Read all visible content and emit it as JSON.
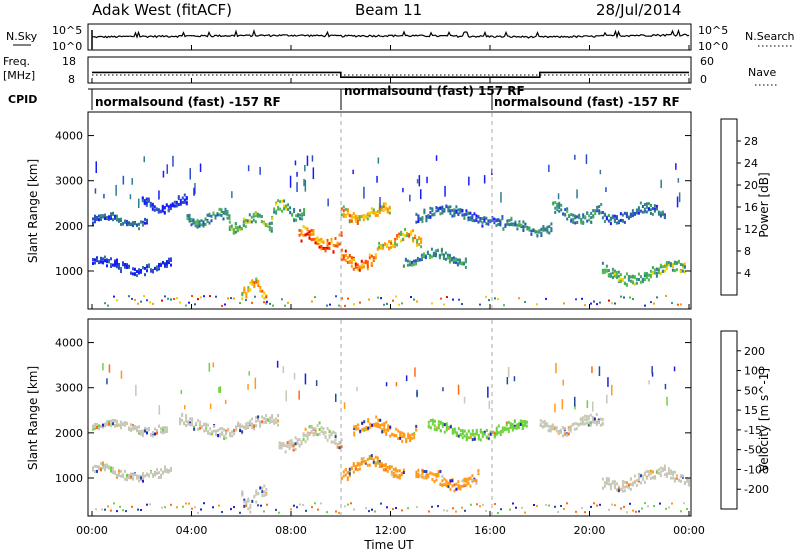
{
  "header": {
    "radar": "Adak West (fitACF)",
    "beam": "Beam 11",
    "date": "28/Jul/2014"
  },
  "panels": {
    "nsky": {
      "label": "N.Sky",
      "right_label": "N.Search",
      "tick_top": "10^5",
      "tick_bottom": "10^0"
    },
    "freq": {
      "label_line1": "Freq.",
      "label_line2": "[MHz]",
      "right_label": "Nave",
      "left_ticks": [
        "18",
        "8"
      ],
      "right_ticks": [
        "60",
        "0"
      ]
    },
    "cpid": {
      "label": "CPID",
      "segments": [
        "normalsound (fast) -157 RF",
        "normalsound (fast) 157 RF",
        "normalsound (fast) -157 RF"
      ]
    }
  },
  "xaxis": {
    "label": "Time UT",
    "ticks": [
      "00:00",
      "04:00",
      "08:00",
      "12:00",
      "16:00",
      "20:00",
      "00:00"
    ]
  },
  "colors": {
    "pwr_colors": [
      "#1a1aff",
      "#2a4fc9",
      "#2f7d8f",
      "#3f9b6f",
      "#4fb84f",
      "#f0d000",
      "#ff9a00",
      "#ff5000",
      "#ee0000"
    ],
    "vel_colors": [
      "#1f1fcf",
      "#234aa0",
      "#2b7d5a",
      "#6ed23f",
      "#c8c8b8",
      "#c8c8b8",
      "#ff9a1a",
      "#ff6a1a",
      "#ff3a1a",
      "#ee1a1a"
    ]
  },
  "chart_data": [
    {
      "type": "line",
      "name_label": "N.Sky",
      "yscale": "log",
      "ylim": [
        1,
        100000
      ],
      "x_hours": [
        0,
        2,
        4,
        6,
        8,
        10,
        12,
        14,
        16,
        18,
        20,
        22,
        24
      ],
      "values": [
        300,
        400,
        500,
        600,
        700,
        500,
        600,
        500,
        400,
        300,
        400,
        700,
        900
      ]
    },
    {
      "type": "line",
      "name_label": "Freq. [MHz]",
      "ylim": [
        8,
        18
      ],
      "x_hours": [
        0,
        10,
        10,
        18,
        18,
        24
      ],
      "values": [
        12,
        12,
        10,
        10,
        12,
        12
      ]
    },
    {
      "type": "heatmap",
      "ylabel": "Slant Range [km]",
      "colorbar_label": "Power [dB]",
      "colorbar_ticks": [
        "28",
        "24",
        "20",
        "16",
        "12",
        "8",
        "4"
      ],
      "xlim_hours": [
        0,
        24
      ],
      "ylim": [
        180,
        4500
      ],
      "yticks": [
        "1000",
        "2000",
        "3000",
        "4000"
      ],
      "bands": [
        {
          "t0": 0.0,
          "t1": 2.2,
          "r": 2150,
          "w": 140,
          "lvl": 2
        },
        {
          "t0": 0.0,
          "t1": 3.2,
          "r": 1150,
          "w": 170,
          "lvl": 1
        },
        {
          "t0": 2.0,
          "t1": 3.8,
          "r": 2500,
          "w": 180,
          "lvl": 1
        },
        {
          "t0": 3.8,
          "t1": 5.5,
          "r": 2200,
          "w": 220,
          "lvl": 3
        },
        {
          "t0": 5.5,
          "t1": 7.2,
          "r": 2100,
          "w": 220,
          "lvl": 4
        },
        {
          "t0": 6.0,
          "t1": 7.0,
          "r": 600,
          "w": 300,
          "lvl": 6
        },
        {
          "t0": 7.2,
          "t1": 8.5,
          "r": 2350,
          "w": 250,
          "lvl": 4
        },
        {
          "t0": 8.3,
          "t1": 10.0,
          "r": 1700,
          "w": 300,
          "lvl": 7
        },
        {
          "t0": 10.0,
          "t1": 11.5,
          "r": 1250,
          "w": 250,
          "lvl": 7
        },
        {
          "t0": 10.0,
          "t1": 12.0,
          "r": 2300,
          "w": 200,
          "lvl": 6
        },
        {
          "t0": 11.5,
          "t1": 13.2,
          "r": 1700,
          "w": 250,
          "lvl": 6
        },
        {
          "t0": 12.5,
          "t1": 15.0,
          "r": 1300,
          "w": 180,
          "lvl": 3
        },
        {
          "t0": 13.0,
          "t1": 16.5,
          "r": 2250,
          "w": 220,
          "lvl": 2
        },
        {
          "t0": 16.5,
          "t1": 18.5,
          "r": 2000,
          "w": 200,
          "lvl": 3
        },
        {
          "t0": 18.5,
          "t1": 20.5,
          "r": 2300,
          "w": 250,
          "lvl": 3
        },
        {
          "t0": 20.5,
          "t1": 23.8,
          "r": 1000,
          "w": 250,
          "lvl": 4
        },
        {
          "t0": 20.5,
          "t1": 23.0,
          "r": 2300,
          "w": 220,
          "lvl": 2
        }
      ]
    },
    {
      "type": "heatmap",
      "ylabel": "Slant Range [km]",
      "colorbar_label": "Velocity [m s^-1]",
      "colorbar_ticks": [
        "200",
        "100",
        "50",
        "15",
        "-15",
        "-50",
        "-100",
        "-200"
      ],
      "xlim_hours": [
        0,
        24
      ],
      "ylim": [
        180,
        4500
      ],
      "yticks": [
        "1000",
        "2000",
        "3000",
        "4000"
      ],
      "bands": [
        {
          "t0": 0.0,
          "t1": 3.0,
          "r": 2150,
          "w": 150,
          "lvl": 4
        },
        {
          "t0": 0.0,
          "t1": 3.2,
          "r": 1150,
          "w": 180,
          "lvl": 4
        },
        {
          "t0": 3.5,
          "t1": 7.5,
          "r": 2200,
          "w": 250,
          "lvl": 4
        },
        {
          "t0": 6.0,
          "t1": 7.0,
          "r": 600,
          "w": 300,
          "lvl": 4
        },
        {
          "t0": 7.5,
          "t1": 10.0,
          "r": 1900,
          "w": 300,
          "lvl": 4
        },
        {
          "t0": 10.0,
          "t1": 12.5,
          "r": 1250,
          "w": 250,
          "lvl": 6
        },
        {
          "t0": 10.5,
          "t1": 13.0,
          "r": 2100,
          "w": 250,
          "lvl": 6
        },
        {
          "t0": 13.0,
          "t1": 15.5,
          "r": 1000,
          "w": 250,
          "lvl": 6
        },
        {
          "t0": 13.5,
          "t1": 17.5,
          "r": 2100,
          "w": 220,
          "lvl": 3
        },
        {
          "t0": 18.0,
          "t1": 20.5,
          "r": 2200,
          "w": 250,
          "lvl": 4
        },
        {
          "t0": 20.5,
          "t1": 24.0,
          "r": 1000,
          "w": 250,
          "lvl": 4
        }
      ]
    }
  ]
}
